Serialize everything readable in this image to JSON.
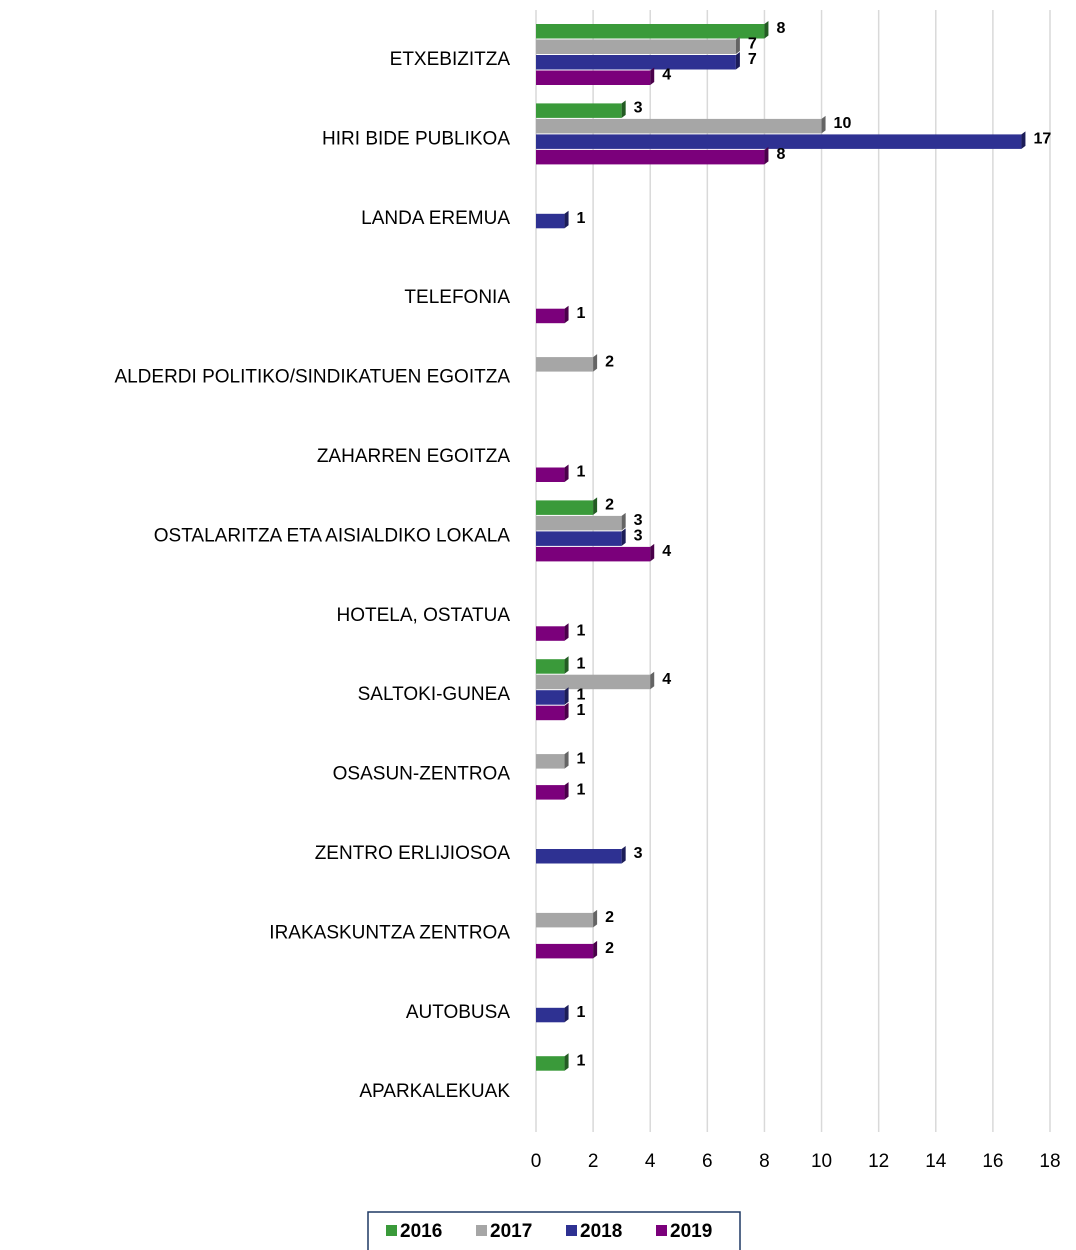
{
  "chart_data": {
    "type": "bar",
    "orientation": "horizontal",
    "categories": [
      "ETXEBIZITZA",
      "HIRI BIDE PUBLIKOA",
      "LANDA EREMUA",
      "TELEFONIA",
      "ALDERDI POLITIKO/SINDIKATUEN EGOITZA",
      "ZAHARREN EGOITZA",
      "OSTALARITZA ETA AISIALDIKO LOKALA",
      "HOTELA, OSTATUA",
      "SALTOKI-GUNEA",
      "OSASUN-ZENTROA",
      "ZENTRO ERLIJIOSOA",
      "IRAKASKUNTZA ZENTROA",
      "AUTOBUSA",
      "APARKALEKUAK"
    ],
    "series": [
      {
        "name": "2016",
        "color": "#3a9a3a",
        "values": [
          8,
          3,
          null,
          null,
          null,
          null,
          2,
          null,
          1,
          null,
          null,
          null,
          null,
          1
        ]
      },
      {
        "name": "2017",
        "color": "#a6a6a6",
        "values": [
          7,
          10,
          null,
          null,
          2,
          null,
          3,
          null,
          4,
          1,
          null,
          2,
          null,
          null
        ]
      },
      {
        "name": "2018",
        "color": "#2e3192",
        "values": [
          7,
          17,
          1,
          null,
          null,
          null,
          3,
          null,
          1,
          null,
          3,
          null,
          1,
          null
        ]
      },
      {
        "name": "2019",
        "color": "#7b007b",
        "values": [
          4,
          8,
          null,
          1,
          null,
          1,
          4,
          1,
          1,
          1,
          null,
          2,
          null,
          null
        ]
      }
    ],
    "xlim": [
      0,
      18
    ],
    "xticks": [
      0,
      2,
      4,
      6,
      8,
      10,
      12,
      14,
      16,
      18
    ],
    "grid": true,
    "legend": "bottom"
  }
}
